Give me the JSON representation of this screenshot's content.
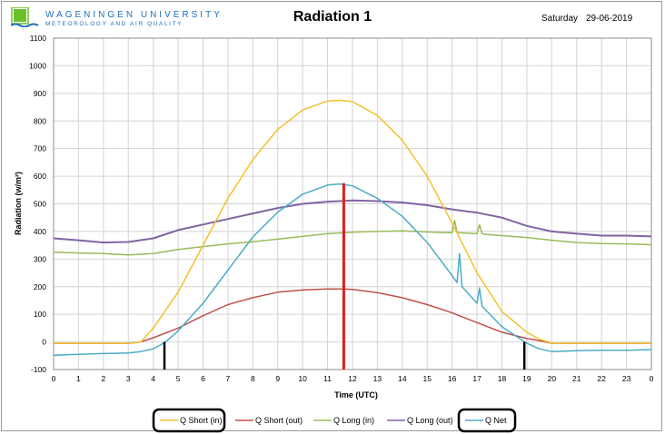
{
  "header": {
    "university": "WAGENINGEN UNIVERSITY",
    "department": "METEOROLOGY AND AIR QUALITY",
    "title": "Radiation 1",
    "day": "Saturday",
    "date": "29-06-2019"
  },
  "colors": {
    "q_short_in": "#f2c12e",
    "q_short_out": "#c0504d",
    "q_long_in": "#9bbb59",
    "q_long_out": "#8064a2",
    "q_net": "#4bacc6",
    "solar_noon_marker": "#e41a1c",
    "zero_crossing_marker": "#000000",
    "logo_green": "#6cbf2a"
  },
  "chart_data": {
    "type": "line",
    "xlabel": "Time (UTC)",
    "ylabel": "Radiation (w/m²)",
    "xlim": [
      0,
      24
    ],
    "ylim": [
      -100,
      1100
    ],
    "x_ticks": [
      "0",
      "1",
      "2",
      "3",
      "4",
      "5",
      "6",
      "7",
      "8",
      "9",
      "10",
      "11",
      "12",
      "13",
      "14",
      "15",
      "16",
      "17",
      "18",
      "19",
      "20",
      "21",
      "22",
      "23",
      "0"
    ],
    "y_ticks": [
      -100,
      0,
      100,
      200,
      300,
      400,
      500,
      600,
      700,
      800,
      900,
      1000,
      1100
    ],
    "grid": true,
    "legend_position": "bottom",
    "series": [
      {
        "name": "Q Short (in)",
        "color_key": "q_short_in",
        "highlighted": true,
        "x": [
          0,
          1,
          2,
          3,
          3.5,
          4,
          5,
          6,
          7,
          8,
          9,
          10,
          11,
          11.5,
          12,
          13,
          14,
          15,
          16,
          17,
          18,
          19,
          19.5,
          20,
          21,
          22,
          23,
          24
        ],
        "y": [
          -5,
          -5,
          -5,
          -5,
          0,
          50,
          180,
          350,
          520,
          660,
          770,
          840,
          872,
          875,
          870,
          820,
          730,
          600,
          430,
          250,
          110,
          35,
          10,
          -5,
          -5,
          -5,
          -5,
          -5
        ]
      },
      {
        "name": "Q Short (out)",
        "color_key": "q_short_out",
        "highlighted": false,
        "x": [
          0,
          1,
          2,
          3,
          3.5,
          4,
          5,
          6,
          7,
          8,
          9,
          10,
          11,
          11.5,
          12,
          13,
          14,
          15,
          16,
          17,
          18,
          19,
          19.5,
          20,
          21,
          22,
          23,
          24
        ],
        "y": [
          -5,
          -5,
          -5,
          -5,
          0,
          15,
          50,
          95,
          135,
          160,
          180,
          188,
          192,
          192,
          190,
          178,
          160,
          135,
          105,
          70,
          35,
          12,
          5,
          -5,
          -5,
          -5,
          -5,
          -5
        ]
      },
      {
        "name": "Q Long (in)",
        "color_key": "q_long_in",
        "highlighted": false,
        "x": [
          0,
          1,
          2,
          3,
          4,
          5,
          6,
          7,
          8,
          9,
          10,
          11,
          12,
          13,
          14,
          15,
          16,
          16.1,
          16.2,
          16.3,
          17,
          17.1,
          17.2,
          17.3,
          18,
          19,
          20,
          21,
          22,
          23,
          24
        ],
        "y": [
          325,
          322,
          320,
          315,
          320,
          335,
          345,
          355,
          363,
          372,
          382,
          392,
          397,
          400,
          402,
          398,
          395,
          440,
          397,
          395,
          392,
          425,
          392,
          390,
          385,
          378,
          368,
          360,
          356,
          355,
          352
        ]
      },
      {
        "name": "Q Long (out)",
        "color_key": "q_long_out",
        "highlighted": false,
        "x": [
          0,
          1,
          2,
          3,
          4,
          5,
          6,
          7,
          8,
          9,
          10,
          11,
          12,
          13,
          14,
          15,
          16,
          17,
          18,
          19,
          20,
          21,
          22,
          23,
          24
        ],
        "y": [
          375,
          368,
          360,
          362,
          375,
          405,
          425,
          445,
          465,
          485,
          500,
          508,
          512,
          510,
          505,
          495,
          480,
          468,
          450,
          420,
          400,
          392,
          385,
          385,
          382
        ]
      },
      {
        "name": "Q Net",
        "color_key": "q_net",
        "highlighted": true,
        "x": [
          0,
          1,
          2,
          3,
          3.5,
          4,
          4.5,
          5,
          6,
          7,
          8,
          9,
          10,
          11,
          11.5,
          12,
          13,
          14,
          15,
          16,
          16.2,
          16.3,
          16.4,
          17,
          17.1,
          17.2,
          17.3,
          18,
          19,
          19.5,
          20,
          21,
          22,
          23,
          24
        ],
        "y": [
          -48,
          -45,
          -42,
          -40,
          -35,
          -25,
          0,
          40,
          140,
          260,
          380,
          470,
          535,
          568,
          572,
          565,
          520,
          455,
          360,
          240,
          215,
          320,
          200,
          140,
          195,
          130,
          120,
          55,
          -5,
          -25,
          -35,
          -32,
          -30,
          -30,
          -28
        ]
      }
    ],
    "markers": [
      {
        "type": "vertical-line",
        "x": 4.45,
        "y_from": -100,
        "y_to": 0,
        "color_key": "zero_crossing_marker"
      },
      {
        "type": "vertical-line",
        "x": 11.65,
        "y_from": -100,
        "y_to": 575,
        "color_key": "solar_noon_marker"
      },
      {
        "type": "vertical-line",
        "x": 18.9,
        "y_from": -100,
        "y_to": 0,
        "color_key": "zero_crossing_marker"
      }
    ]
  }
}
